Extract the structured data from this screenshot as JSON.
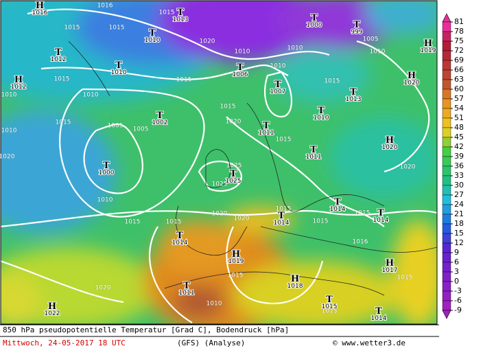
{
  "map": {
    "legend": {
      "labels": [
        81,
        78,
        75,
        72,
        69,
        66,
        63,
        60,
        57,
        54,
        51,
        48,
        45,
        42,
        39,
        36,
        33,
        30,
        27,
        24,
        21,
        18,
        15,
        12,
        9,
        6,
        3,
        0,
        -3,
        -6,
        -9
      ]
    },
    "centers": [
      {
        "letter": "H",
        "value": "1016"
      },
      {
        "letter": "T",
        "value": "1013"
      },
      {
        "letter": "T",
        "value": "1000"
      },
      {
        "letter": "T",
        "value": "999"
      },
      {
        "letter": "H",
        "value": "1019"
      },
      {
        "letter": "T",
        "value": "1012"
      },
      {
        "letter": "T",
        "value": "1010"
      },
      {
        "letter": "T",
        "value": "1010"
      },
      {
        "letter": "T",
        "value": "1006"
      },
      {
        "letter": "H",
        "value": "1012"
      },
      {
        "letter": "H",
        "value": "1020"
      },
      {
        "letter": "T",
        "value": "1007"
      },
      {
        "letter": "T",
        "value": "1013"
      },
      {
        "letter": "T",
        "value": "1010"
      },
      {
        "letter": "T",
        "value": "1002"
      },
      {
        "letter": "T",
        "value": "1011"
      },
      {
        "letter": "H",
        "value": "1020"
      },
      {
        "letter": "T",
        "value": "1011"
      },
      {
        "letter": "T",
        "value": "1000"
      },
      {
        "letter": "T",
        "value": "1025"
      },
      {
        "letter": "T",
        "value": "1014"
      },
      {
        "letter": "T",
        "value": "1014"
      },
      {
        "letter": "T",
        "value": "1014"
      },
      {
        "letter": "T",
        "value": "1014"
      },
      {
        "letter": "H",
        "value": "1019"
      },
      {
        "letter": "H",
        "value": "1017"
      },
      {
        "letter": "H",
        "value": "1018"
      },
      {
        "letter": "T",
        "value": "1011"
      },
      {
        "letter": "H",
        "value": "1022"
      },
      {
        "letter": "T",
        "value": "1015"
      },
      {
        "letter": "T",
        "value": "1014"
      }
    ],
    "isobar_labels": [
      "1016",
      "1015",
      "1015",
      "1015",
      "1020",
      "1010",
      "1010",
      "1005",
      "1010",
      "1015",
      "1015",
      "1010",
      "1015",
      "1010",
      "1015",
      "1020",
      "1005",
      "1005",
      "1015",
      "1015",
      "1010",
      "1010",
      "1020",
      "1025",
      "1025",
      "1020",
      "1010",
      "1015",
      "1020",
      "1020",
      "1015",
      "1015",
      "1015",
      "1016",
      "1015",
      "1015",
      "1015",
      "1020",
      "1010",
      "1015"
    ],
    "footer": {
      "title": "850 hPa pseudopotentielle Temperatur [Grad C], Bodendruck [hPa]",
      "date": "Mittwoch, 24-05-2017  18 UTC",
      "model": "(GFS)  (Analyse)",
      "credit": "© www.wetter3.de"
    }
  }
}
